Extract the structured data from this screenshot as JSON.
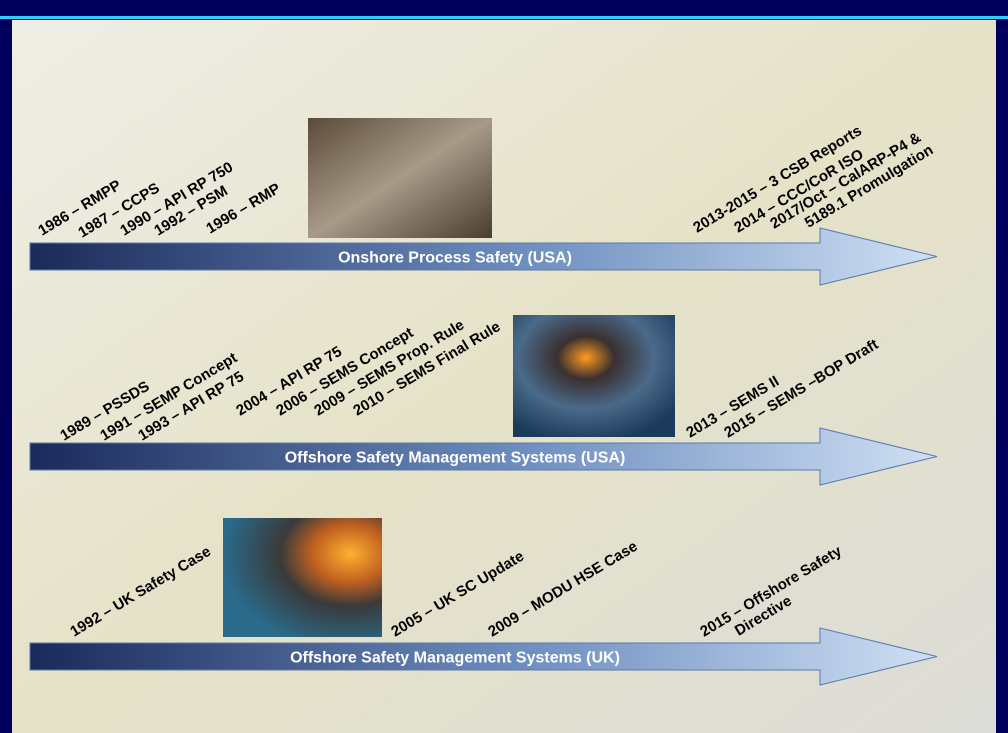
{
  "timelines": [
    {
      "label": "Onshore Process Safety (USA)",
      "events": [
        [
          "1986 – RMPP"
        ],
        [
          "1987 – CCPS"
        ],
        [
          "1990 – API RP 750"
        ],
        [
          "1992 – PSM"
        ],
        [
          "1996 – RMP"
        ],
        [
          "2013-2015 – 3 CSB Reports"
        ],
        [
          "2014 – CCC/CoR ISO"
        ],
        [
          "2017/Oct – CalARP-P4 &",
          "5189.1 Promulgation"
        ]
      ]
    },
    {
      "label": "Offshore Safety Management Systems (USA)",
      "events": [
        [
          "1989 – PSSDS"
        ],
        [
          "1991 – SEMP Concept"
        ],
        [
          "1993 – API RP 75"
        ],
        [
          "2004 – API RP 75"
        ],
        [
          "2006 – SEMS Concept"
        ],
        [
          "2009 – SEMS Prop. Rule"
        ],
        [
          "2010 – SEMS Final Rule"
        ],
        [
          "2013 – SEMS II"
        ],
        [
          "2015 – SEMS –BOP Draft"
        ]
      ]
    },
    {
      "label": "Offshore Safety Management Systems (UK)",
      "events": [
        [
          "1992 – UK Safety Case"
        ],
        [
          "2005 – UK SC Update"
        ],
        [
          "2009 – MODU HSE Case"
        ],
        [
          "2015 – Offshore Safety",
          "Directive"
        ]
      ]
    }
  ]
}
